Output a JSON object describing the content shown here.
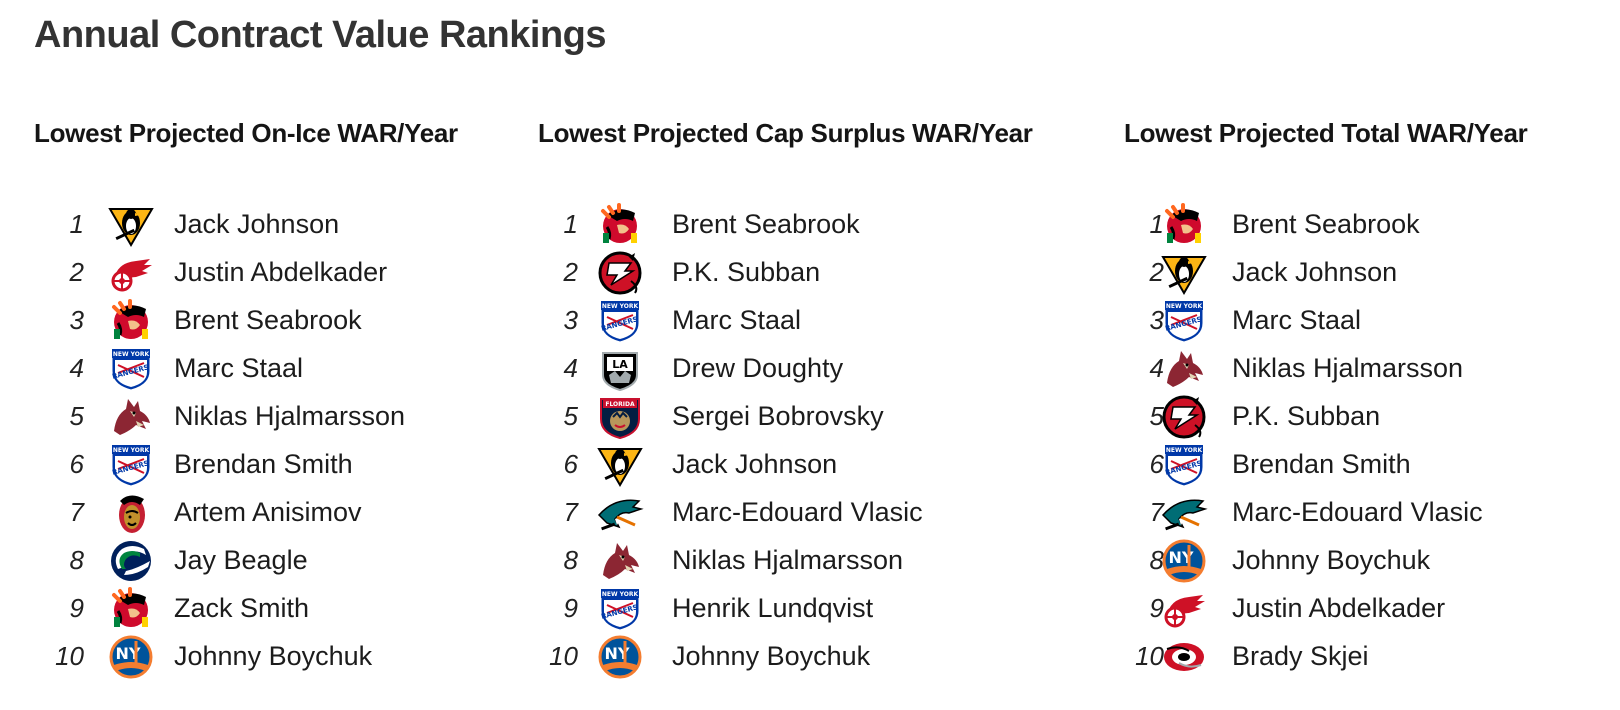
{
  "title": "Annual Contract Value Rankings",
  "columns": [
    {
      "heading": "Lowest Projected On-Ice WAR/Year",
      "rows": [
        {
          "rank": "1",
          "team_icon": "penguins-icon",
          "player": "Jack Johnson"
        },
        {
          "rank": "2",
          "team_icon": "red-wings-icon",
          "player": "Justin Abdelkader"
        },
        {
          "rank": "3",
          "team_icon": "blackhawks-icon",
          "player": "Brent Seabrook"
        },
        {
          "rank": "4",
          "team_icon": "rangers-icon",
          "player": "Marc Staal"
        },
        {
          "rank": "5",
          "team_icon": "coyotes-icon",
          "player": "Niklas Hjalmarsson"
        },
        {
          "rank": "6",
          "team_icon": "rangers-icon",
          "player": "Brendan Smith"
        },
        {
          "rank": "7",
          "team_icon": "senators-icon",
          "player": "Artem Anisimov"
        },
        {
          "rank": "8",
          "team_icon": "canucks-icon",
          "player": "Jay Beagle"
        },
        {
          "rank": "9",
          "team_icon": "blackhawks-icon",
          "player": "Zack Smith"
        },
        {
          "rank": "10",
          "team_icon": "islanders-icon",
          "player": "Johnny Boychuk"
        }
      ]
    },
    {
      "heading": "Lowest Projected Cap Surplus WAR/Year",
      "rows": [
        {
          "rank": "1",
          "team_icon": "blackhawks-icon",
          "player": "Brent Seabrook"
        },
        {
          "rank": "2",
          "team_icon": "devils-icon",
          "player": "P.K. Subban"
        },
        {
          "rank": "3",
          "team_icon": "rangers-icon",
          "player": "Marc Staal"
        },
        {
          "rank": "4",
          "team_icon": "kings-icon",
          "player": "Drew Doughty"
        },
        {
          "rank": "5",
          "team_icon": "panthers-icon",
          "player": "Sergei Bobrovsky"
        },
        {
          "rank": "6",
          "team_icon": "penguins-icon",
          "player": "Jack Johnson"
        },
        {
          "rank": "7",
          "team_icon": "sharks-icon",
          "player": "Marc-Edouard Vlasic"
        },
        {
          "rank": "8",
          "team_icon": "coyotes-icon",
          "player": "Niklas Hjalmarsson"
        },
        {
          "rank": "9",
          "team_icon": "rangers-icon",
          "player": "Henrik Lundqvist"
        },
        {
          "rank": "10",
          "team_icon": "islanders-icon",
          "player": "Johnny Boychuk"
        }
      ]
    },
    {
      "heading": "Lowest Projected Total WAR/Year",
      "rows": [
        {
          "rank": "1",
          "team_icon": "blackhawks-icon",
          "player": "Brent Seabrook"
        },
        {
          "rank": "2",
          "team_icon": "penguins-icon",
          "player": "Jack Johnson"
        },
        {
          "rank": "3",
          "team_icon": "rangers-icon",
          "player": "Marc Staal"
        },
        {
          "rank": "4",
          "team_icon": "coyotes-icon",
          "player": "Niklas Hjalmarsson"
        },
        {
          "rank": "5",
          "team_icon": "devils-icon",
          "player": "P.K. Subban"
        },
        {
          "rank": "6",
          "team_icon": "rangers-icon",
          "player": "Brendan Smith"
        },
        {
          "rank": "7",
          "team_icon": "sharks-icon",
          "player": "Marc-Edouard Vlasic"
        },
        {
          "rank": "8",
          "team_icon": "islanders-icon",
          "player": "Johnny Boychuk"
        },
        {
          "rank": "9",
          "team_icon": "red-wings-icon",
          "player": "Justin Abdelkader"
        },
        {
          "rank": "10",
          "team_icon": "hurricanes-icon",
          "player": "Brady Skjei"
        }
      ]
    }
  ],
  "colors": {
    "title": "#333333",
    "text": "#1c1c1c"
  }
}
